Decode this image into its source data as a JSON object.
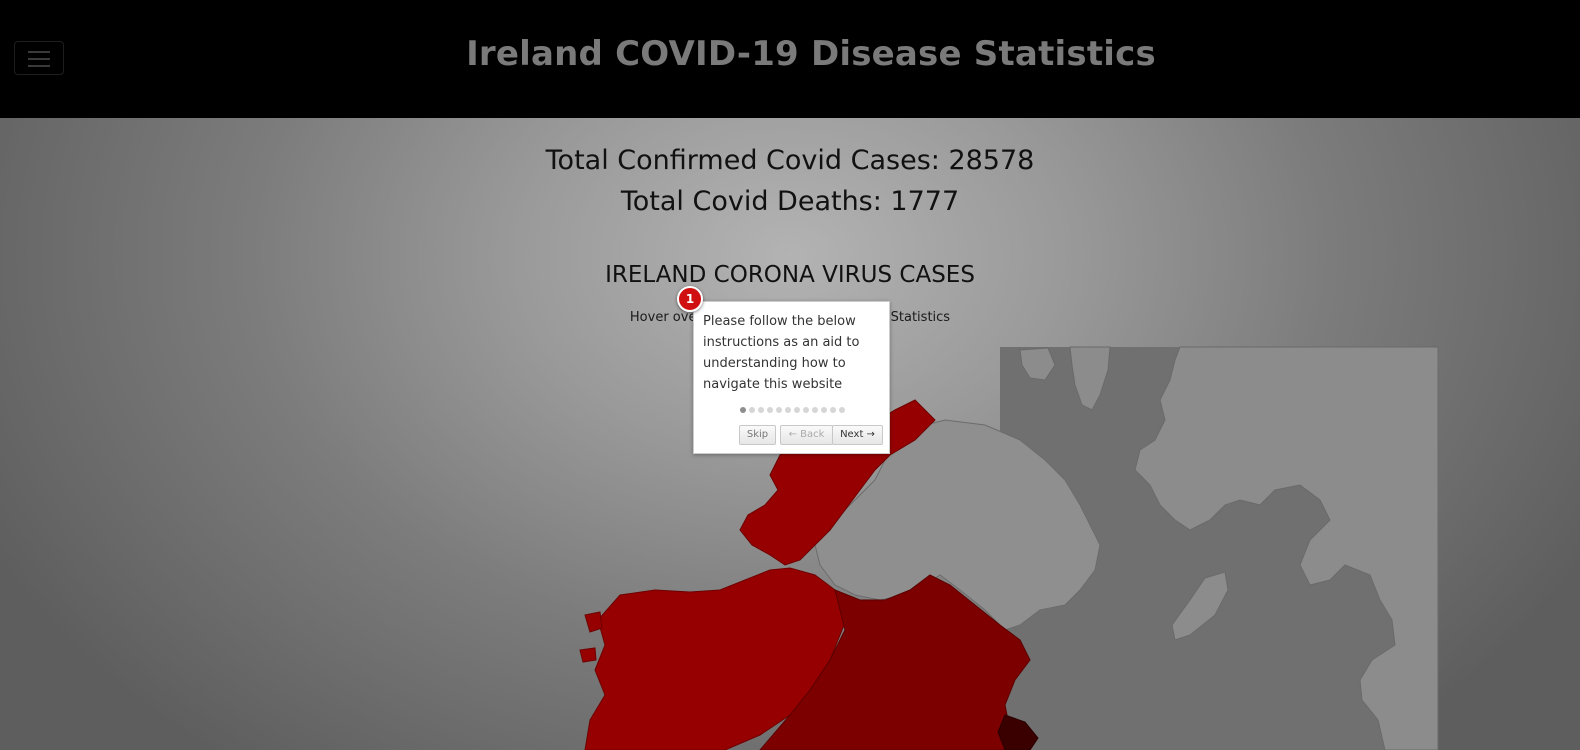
{
  "header": {
    "title": "Ireland COVID-19 Disease Statistics",
    "menu_icon": "hamburger-menu-icon"
  },
  "stats": {
    "cases_text": "Total Confirmed Covid Cases: 28578",
    "deaths_text": "Total Covid Deaths: 1777"
  },
  "map": {
    "heading": "IRELAND CORONA VIRUS CASES",
    "hint": "Hover over a county to view its specific Statistics",
    "colors": {
      "county_fill": "#960000",
      "county_dark": "#7d0000",
      "county_darkest": "#3a0000",
      "uk_fill": "#8e8e8e",
      "background_panel": "#6e6e6e"
    }
  },
  "tour": {
    "step_number": "1",
    "text": "Please follow the below instructions as an aid to understanding how to navigate this website",
    "total_steps": 12,
    "current_step": 1,
    "skip_label": "Skip",
    "back_label": "← Back",
    "next_label": "Next →"
  }
}
